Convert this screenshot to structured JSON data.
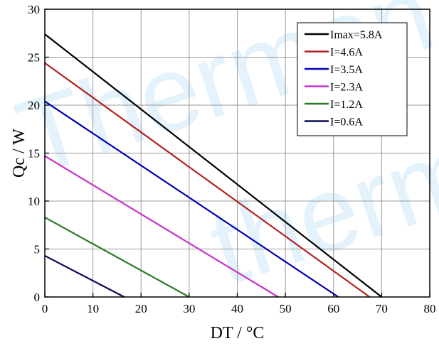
{
  "chart_data": {
    "type": "line",
    "xlabel": "DT / °C",
    "ylabel": "Qc / W",
    "xlim": [
      0,
      80
    ],
    "ylim": [
      0,
      30
    ],
    "xticks": [
      0,
      10,
      20,
      30,
      40,
      50,
      60,
      70,
      80
    ],
    "yticks": [
      0,
      5,
      10,
      15,
      20,
      25,
      30
    ],
    "grid": true,
    "legend_position": "top-right",
    "series": [
      {
        "name": "Imax=5.8A",
        "color": "#000000",
        "x": [
          0,
          70
        ],
        "y": [
          27.4,
          0
        ]
      },
      {
        "name": "I=4.6A",
        "color": "#b22222",
        "x": [
          0,
          67.5
        ],
        "y": [
          24.4,
          0
        ]
      },
      {
        "name": "I=3.5A",
        "color": "#0000b4",
        "x": [
          0,
          61
        ],
        "y": [
          20.4,
          0
        ]
      },
      {
        "name": "I=2.3A",
        "color": "#c832c8",
        "x": [
          0,
          48.5
        ],
        "y": [
          14.7,
          0
        ]
      },
      {
        "name": "I=1.2A",
        "color": "#2a7a2a",
        "x": [
          0,
          30
        ],
        "y": [
          8.3,
          0
        ]
      },
      {
        "name": "I=0.6A",
        "color": "#0a0a5a",
        "x": [
          0,
          16.5
        ],
        "y": [
          4.3,
          0
        ]
      }
    ]
  }
}
